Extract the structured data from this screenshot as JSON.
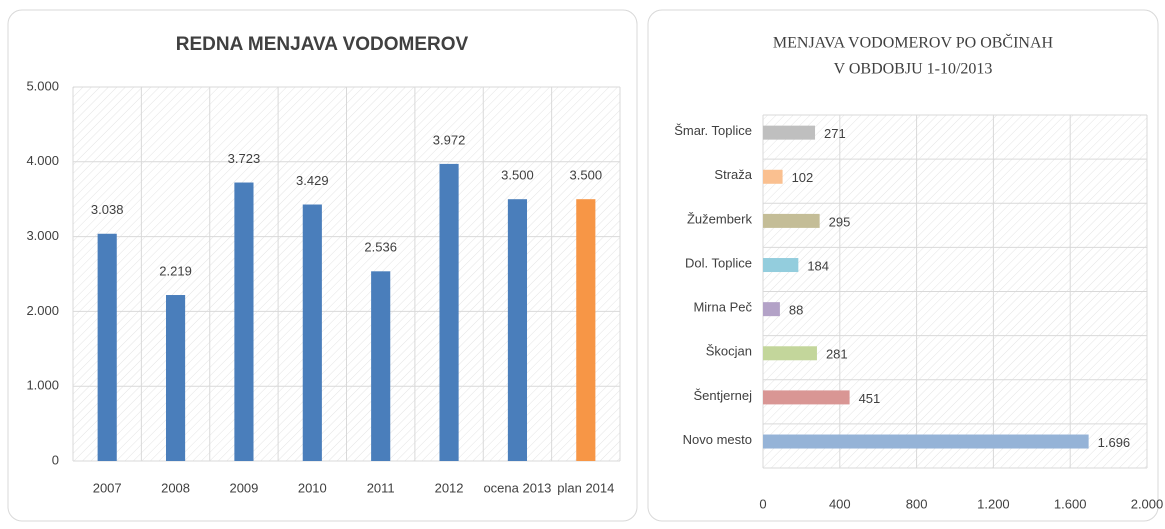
{
  "chart_data": [
    {
      "type": "bar",
      "title": "REDNA MENJAVA VODOMEROV",
      "categories": [
        "2007",
        "2008",
        "2009",
        "2010",
        "2011",
        "2012",
        "ocena 2013",
        "plan 2014"
      ],
      "values": [
        3038,
        2219,
        3723,
        3429,
        2536,
        3972,
        3500,
        3500
      ],
      "value_labels": [
        "3.038",
        "2.219",
        "3.723",
        "3.429",
        "2.536",
        "3.972",
        "3.500",
        "3.500"
      ],
      "colors": [
        "#4a7ebb",
        "#4a7ebb",
        "#4a7ebb",
        "#4a7ebb",
        "#4a7ebb",
        "#4a7ebb",
        "#4a7ebb",
        "#f79646"
      ],
      "ylim": [
        0,
        5000
      ],
      "yticks": [
        0,
        {
          "value": 1000,
          "label": "1.000"
        },
        {
          "value": 2000,
          "label": "2.000"
        },
        {
          "value": 3000,
          "label": "3.000"
        },
        {
          "value": 4000,
          "label": "4.000"
        },
        {
          "value": 5000,
          "label": "5.000"
        }
      ],
      "grid": true
    },
    {
      "type": "hbar",
      "title": [
        "MENJAVA VODOMEROV   PO OBČINAH",
        "V OBDOBJU 1-10/2013"
      ],
      "categories": [
        "Šmar. Toplice",
        "Straža",
        "Žužemberk",
        "Dol. Toplice",
        "Mirna Peč",
        "Škocjan",
        "Šentjernej",
        "Novo mesto"
      ],
      "values": [
        271,
        102,
        295,
        184,
        88,
        281,
        451,
        1696
      ],
      "value_labels": [
        "271",
        "102",
        "295",
        "184",
        "88",
        "281",
        "451",
        "1.696"
      ],
      "colors": [
        "#bfbfbf",
        "#fac090",
        "#c4bd97",
        "#93cddd",
        "#b3a2c7",
        "#c3d69b",
        "#d99694",
        "#95b3d7"
      ],
      "xlim": [
        0,
        2000
      ],
      "xticks": [
        0,
        400,
        800,
        {
          "value": 1200,
          "label": "1.200"
        },
        {
          "value": 1600,
          "label": "1.600"
        },
        {
          "value": 2000,
          "label": "2.000"
        }
      ],
      "grid": true
    }
  ]
}
